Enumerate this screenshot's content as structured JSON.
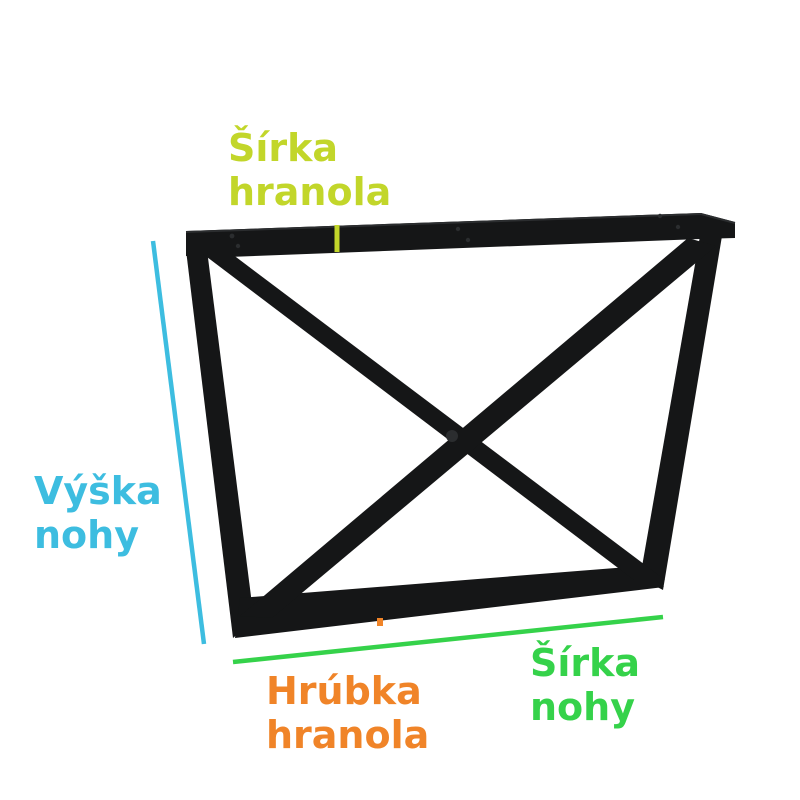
{
  "colors": {
    "frame": "#151617",
    "frame_edge": "#2b2d2f",
    "beam_width": "#c2d62a",
    "leg_height": "#3dbde0",
    "beam_thickness": "#f08428",
    "leg_width": "#35d24a"
  },
  "labels": {
    "beam_width": [
      "Šírka",
      "hranola"
    ],
    "leg_height": [
      "Výška",
      "nohy"
    ],
    "beam_thickness": [
      "Hrúbka",
      "hranola"
    ],
    "leg_width": [
      "Šírka",
      "nohy"
    ]
  }
}
